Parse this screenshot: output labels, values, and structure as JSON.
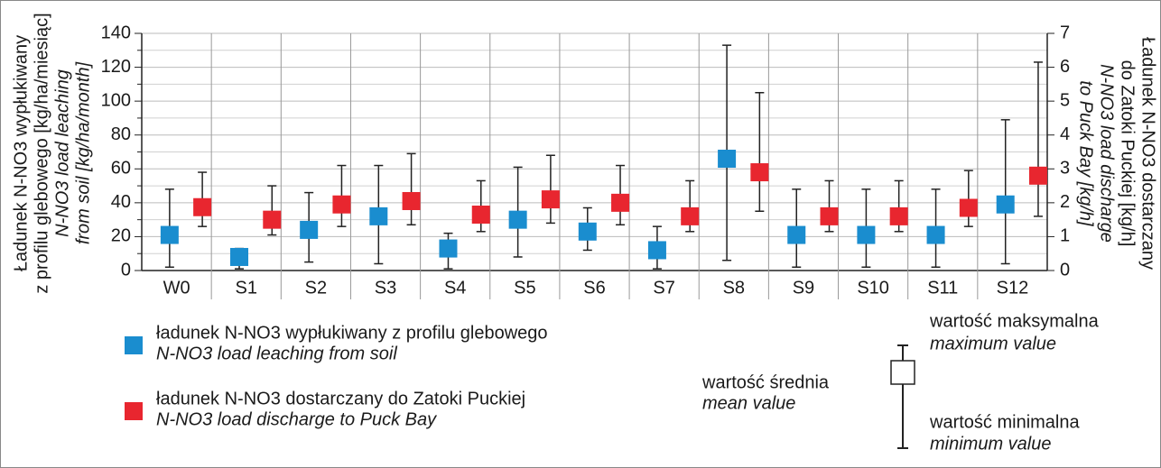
{
  "chart_data": {
    "type": "errorbar",
    "y_label": [
      "Ładunek N-NO3 wypłukiwany",
      "z profilu glebowego [kg/ha/miesiąc]",
      "N-NO3 load leaching",
      "from soil [kg/ha/month]"
    ],
    "y2_label": [
      "Ładunek N-NO3 dostarczany",
      "do Zatoki Puckiej [kg/h]",
      "N-NO3 load discharge",
      "to Puck Bay [kg/h]"
    ],
    "categories": [
      "W0",
      "S1",
      "S2",
      "S3",
      "S4",
      "S5",
      "S6",
      "S7",
      "S8",
      "S9",
      "S10",
      "S11",
      "S12"
    ],
    "ylim": [
      0,
      140
    ],
    "yticks": [
      0,
      20,
      40,
      60,
      80,
      100,
      120,
      140
    ],
    "yminorticks": [
      10,
      30,
      50,
      70,
      90,
      110,
      130
    ],
    "y2lim": [
      0,
      7
    ],
    "y2ticks": [
      0,
      1,
      2,
      3,
      4,
      5,
      6,
      7
    ],
    "grid": true,
    "series": [
      {
        "name": "ładunek N-NO3 wypłukiwany z profilu glebowego",
        "name_en": "N-NO3 load leaching from soil",
        "color": "#1a8dcf",
        "values": [
          21,
          8,
          24,
          32,
          13,
          30,
          23,
          12,
          66,
          21,
          21,
          21,
          39
        ],
        "min": [
          2,
          1,
          5,
          4,
          1,
          8,
          12,
          1,
          6,
          2,
          2,
          2,
          4
        ],
        "max": [
          48,
          13,
          46,
          62,
          22,
          61,
          37,
          26,
          133,
          48,
          48,
          48,
          89
        ]
      },
      {
        "name": "ładunek N-NO3 dostarczany do Zatoki Puckiej",
        "name_en": "N-NO3 load discharge to Puck Bay",
        "color": "#e8262f",
        "axis": "y2",
        "values": [
          1.87,
          1.5,
          1.95,
          2.05,
          1.65,
          2.1,
          2.0,
          1.6,
          2.9,
          1.6,
          1.6,
          1.85,
          2.8
        ],
        "min": [
          1.3,
          1.05,
          1.3,
          1.35,
          1.15,
          1.4,
          1.35,
          1.15,
          1.75,
          1.15,
          1.15,
          1.3,
          1.6
        ],
        "max": [
          2.9,
          2.5,
          3.1,
          3.45,
          2.65,
          3.4,
          3.1,
          2.65,
          5.25,
          2.65,
          2.65,
          2.95,
          6.15
        ]
      }
    ],
    "key": {
      "mean": "wartość średnia",
      "mean_en": "mean value",
      "max": "wartość maksymalna",
      "max_en": "maximum value",
      "min": "wartość minimalna",
      "min_en": "minimum value"
    }
  }
}
